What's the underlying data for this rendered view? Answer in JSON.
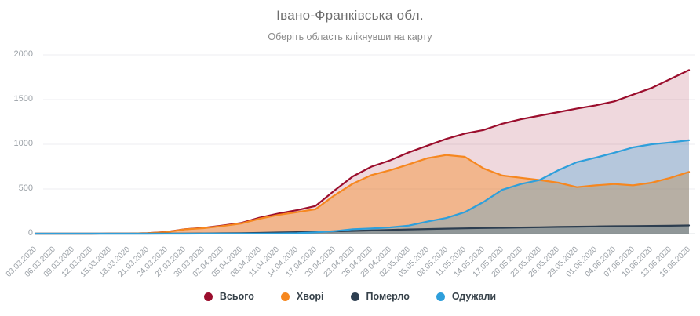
{
  "header": {
    "title": "Івано-Франківська обл.",
    "subtitle": "Оберіть область клікнувши на карту"
  },
  "chart_data": {
    "type": "area",
    "title": "Івано-Франківська обл.",
    "xlabel": "",
    "ylabel": "",
    "ylim": [
      0,
      2000
    ],
    "yticks": [
      0,
      500,
      1000,
      1500,
      2000
    ],
    "grid": true,
    "legend_position": "bottom",
    "x": [
      "03.03.2020",
      "06.03.2020",
      "09.03.2020",
      "12.03.2020",
      "15.03.2020",
      "18.03.2020",
      "21.03.2020",
      "24.03.2020",
      "27.03.2020",
      "30.03.2020",
      "02.04.2020",
      "05.04.2020",
      "08.04.2020",
      "11.04.2020",
      "14.04.2020",
      "17.04.2020",
      "20.04.2020",
      "23.04.2020",
      "26.04.2020",
      "29.04.2020",
      "02.05.2020",
      "05.05.2020",
      "08.05.2020",
      "11.05.2020",
      "14.05.2020",
      "17.05.2020",
      "20.05.2020",
      "23.05.2020",
      "26.05.2020",
      "29.05.2020",
      "01.06.2020",
      "04.06.2020",
      "07.06.2020",
      "10.06.2020",
      "13.06.2020",
      "16.06.2020"
    ],
    "series": [
      {
        "key": "total",
        "name": "Всього",
        "color": "#9b0e2d",
        "fill_opacity": 0.16,
        "values": [
          0,
          0,
          0,
          0,
          1,
          2,
          6,
          18,
          50,
          65,
          90,
          118,
          178,
          225,
          262,
          310,
          480,
          640,
          750,
          820,
          910,
          985,
          1060,
          1120,
          1160,
          1230,
          1280,
          1320,
          1360,
          1400,
          1435,
          1480,
          1555,
          1630,
          1730,
          1830
        ]
      },
      {
        "key": "sick",
        "name": "Хворі",
        "color": "#f6871f",
        "fill_opacity": 0.42,
        "values": [
          0,
          0,
          0,
          0,
          1,
          2,
          6,
          17,
          48,
          61,
          85,
          112,
          167,
          209,
          240,
          273,
          426,
          560,
          655,
          710,
          775,
          845,
          880,
          860,
          730,
          650,
          625,
          600,
          570,
          520,
          540,
          555,
          540,
          570,
          625,
          690
        ]
      },
      {
        "key": "died",
        "name": "Померло",
        "color": "#2d3e50",
        "fill_opacity": 0.28,
        "values": [
          0,
          0,
          0,
          0,
          0,
          0,
          0,
          1,
          2,
          3,
          4,
          6,
          9,
          13,
          17,
          22,
          26,
          31,
          36,
          42,
          47,
          52,
          56,
          60,
          63,
          66,
          69,
          72,
          75,
          78,
          81,
          83,
          85,
          87,
          89,
          92
        ]
      },
      {
        "key": "recovered",
        "name": "Одужали",
        "color": "#2e9fdb",
        "fill_opacity": 0.3,
        "values": [
          0,
          0,
          0,
          0,
          0,
          0,
          0,
          0,
          0,
          1,
          1,
          2,
          2,
          3,
          5,
          15,
          28,
          50,
          58,
          70,
          90,
          135,
          175,
          240,
          355,
          490,
          555,
          600,
          710,
          800,
          850,
          905,
          965,
          1000,
          1020,
          1045
        ]
      }
    ]
  }
}
